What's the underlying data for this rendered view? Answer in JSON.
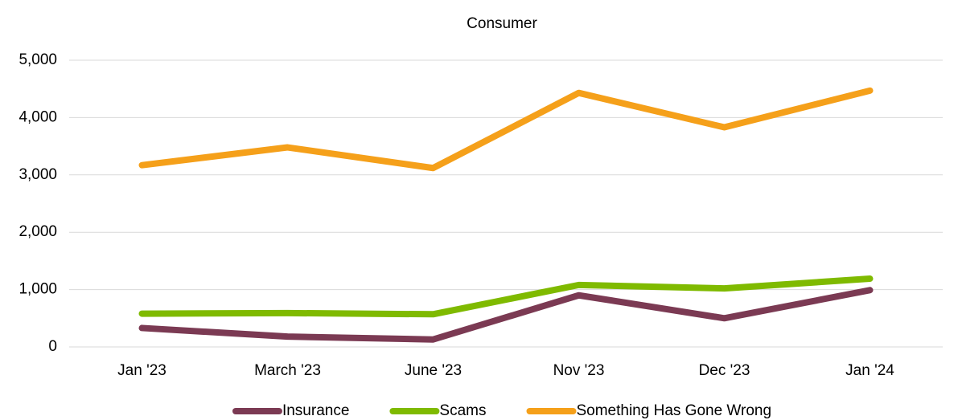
{
  "chart_data": {
    "type": "line",
    "title": "Consumer",
    "categories": [
      "Jan '23",
      "March '23",
      "June '23",
      "Nov '23",
      "Dec '23",
      "Jan '24"
    ],
    "series": [
      {
        "name": "Insurance",
        "color": "#7b3a53",
        "values": [
          330,
          180,
          130,
          900,
          500,
          990
        ]
      },
      {
        "name": "Scams",
        "color": "#7fba00",
        "values": [
          580,
          590,
          570,
          1080,
          1020,
          1190
        ]
      },
      {
        "name": "Something Has Gone Wrong",
        "color": "#f5a01a",
        "values": [
          3170,
          3480,
          3120,
          4430,
          3830,
          4470
        ]
      }
    ],
    "ylim": [
      0,
      5000
    ],
    "yticks": [
      0,
      {
        "value": 1000,
        "label": "1,000"
      },
      {
        "value": 2000,
        "label": "2,000"
      },
      {
        "value": 3000,
        "label": "3,000"
      },
      {
        "value": 4000,
        "label": "4,000"
      },
      {
        "value": 5000,
        "label": "5,000"
      }
    ],
    "grid": true,
    "legend": "bottom"
  }
}
